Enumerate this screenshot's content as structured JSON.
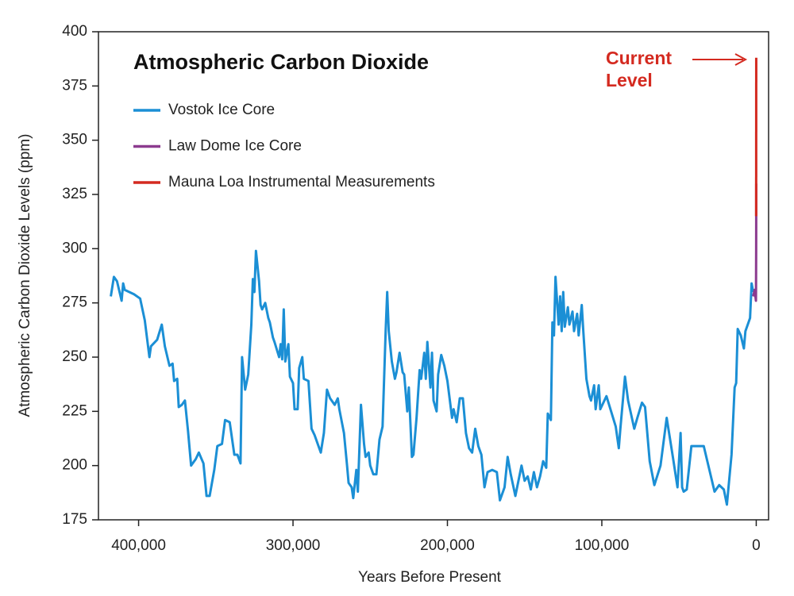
{
  "chart_data": {
    "type": "line",
    "title": "Atmospheric Carbon Dioxide",
    "x_label": "Years Before Present",
    "y_label": "Atmospheric Carbon Dioxide Levels (ppm)",
    "annotation_lines": [
      "Current",
      "Level"
    ],
    "xlim": [
      426000,
      -8000
    ],
    "ylim": [
      175,
      400
    ],
    "xticks": [
      {
        "value": 400000,
        "label": "400,000"
      },
      {
        "value": 300000,
        "label": "300,000"
      },
      {
        "value": 200000,
        "label": "200,000"
      },
      {
        "value": 100000,
        "label": "100,000"
      },
      0
    ],
    "yticks": [
      175,
      200,
      225,
      250,
      275,
      300,
      325,
      350,
      375,
      400
    ],
    "series": [
      {
        "name": "Vostok Ice Core",
        "color": "#1b8fd5",
        "x": [
          418000,
          416000,
          414000,
          411000,
          410000,
          409000,
          403000,
          399000,
          396000,
          393000,
          392000,
          388000,
          385000,
          383000,
          380000,
          378000,
          377000,
          375000,
          374000,
          372000,
          370000,
          368000,
          366000,
          363000,
          361000,
          358000,
          356000,
          354000,
          351000,
          349000,
          346000,
          344000,
          341000,
          338000,
          336000,
          334000,
          333000,
          331000,
          329000,
          327000,
          326000,
          325000,
          324000,
          322000,
          321000,
          320000,
          318000,
          316000,
          315000,
          313000,
          312000,
          309000,
          308000,
          307000,
          306000,
          305000,
          303000,
          302000,
          300000,
          299000,
          297000,
          296000,
          294000,
          293000,
          290000,
          288000,
          286000,
          284000,
          282000,
          280000,
          278000,
          276000,
          273000,
          271000,
          270000,
          267000,
          265000,
          264000,
          262000,
          261000,
          259000,
          258000,
          256000,
          254000,
          253000,
          251000,
          250000,
          248000,
          246000,
          244000,
          242000,
          240000,
          239000,
          238000,
          236000,
          234000,
          233000,
          231000,
          229000,
          228000,
          226000,
          225000,
          223000,
          222000,
          220000,
          218000,
          217000,
          215000,
          214000,
          213000,
          211000,
          210000,
          209000,
          207000,
          206000,
          204000,
          202000,
          200000,
          197000,
          196000,
          194000,
          192000,
          190000,
          188000,
          186000,
          184000,
          182000,
          180000,
          178000,
          176000,
          174000,
          171000,
          168000,
          166000,
          163000,
          161000,
          159000,
          156000,
          154000,
          152000,
          150000,
          148000,
          146000,
          144000,
          142000,
          140000,
          138000,
          136000,
          135000,
          133000,
          132000,
          131000,
          130000,
          128000,
          127000,
          126000,
          125000,
          124000,
          122000,
          121000,
          119000,
          118000,
          116000,
          115000,
          113000,
          112000,
          110000,
          108000,
          107000,
          105000,
          104000,
          102000,
          101000,
          97000,
          94000,
          91000,
          89000,
          88000,
          85000,
          83000,
          79000,
          77000,
          74000,
          72000,
          69000,
          66000,
          62000,
          58000,
          54000,
          51000,
          49000,
          48000,
          47000,
          45000,
          42000,
          38000,
          34000,
          31000,
          27000,
          24000,
          21000,
          19000,
          16000,
          14000,
          13000,
          12000,
          10000,
          8000,
          7000,
          5000,
          4000,
          3000,
          2000
        ],
        "values": [
          278,
          287,
          285,
          276,
          284,
          281,
          279,
          277,
          267,
          250,
          255,
          258,
          265,
          255,
          246,
          247,
          239,
          240,
          227,
          228,
          230,
          216,
          200,
          203,
          206,
          201,
          186,
          186,
          198,
          209,
          210,
          221,
          220,
          205,
          205,
          201,
          250,
          235,
          242,
          265,
          286,
          280,
          299,
          285,
          274,
          272,
          275,
          268,
          266,
          259,
          257,
          250,
          256,
          249,
          272,
          248,
          256,
          241,
          238,
          226,
          226,
          245,
          250,
          240,
          239,
          217,
          214,
          210,
          206,
          215,
          235,
          231,
          228,
          231,
          226,
          215,
          200,
          192,
          190,
          185,
          198,
          188,
          228,
          210,
          204,
          206,
          200,
          196,
          196,
          212,
          218,
          262,
          280,
          262,
          248,
          240,
          243,
          252,
          243,
          242,
          225,
          236,
          204,
          205,
          222,
          244,
          240,
          252,
          240,
          257,
          236,
          252,
          230,
          225,
          242,
          251,
          246,
          239,
          222,
          226,
          220,
          231,
          231,
          215,
          208,
          206,
          217,
          209,
          205,
          190,
          197,
          198,
          197,
          184,
          190,
          204,
          196,
          186,
          193,
          200,
          193,
          195,
          189,
          197,
          190,
          195,
          202,
          199,
          224,
          221,
          266,
          260,
          287,
          265,
          278,
          262,
          280,
          264,
          273,
          265,
          271,
          262,
          270,
          260,
          274,
          262,
          240,
          232,
          230,
          237,
          226,
          237,
          226,
          232,
          225,
          218,
          208,
          217,
          241,
          230,
          217,
          222,
          229,
          227,
          202,
          191,
          200,
          222,
          204,
          190,
          215,
          190,
          188,
          189,
          209,
          209,
          209,
          200,
          188,
          191,
          189,
          182,
          205,
          236,
          238,
          263,
          260,
          254,
          262,
          266,
          268,
          284,
          280
        ]
      },
      {
        "name": "Law Dome Ice Core",
        "color": "#8c3b8f",
        "x": [
          2000,
          1000,
          200,
          150,
          100,
          50,
          20,
          0
        ],
        "values": [
          278,
          281,
          276,
          280,
          290,
          300,
          312,
          330
        ]
      },
      {
        "name": "Mauna Loa Instrumental Measurements",
        "color": "#d42a20",
        "x": [
          52,
          0
        ],
        "values": [
          315,
          388
        ]
      }
    ]
  }
}
